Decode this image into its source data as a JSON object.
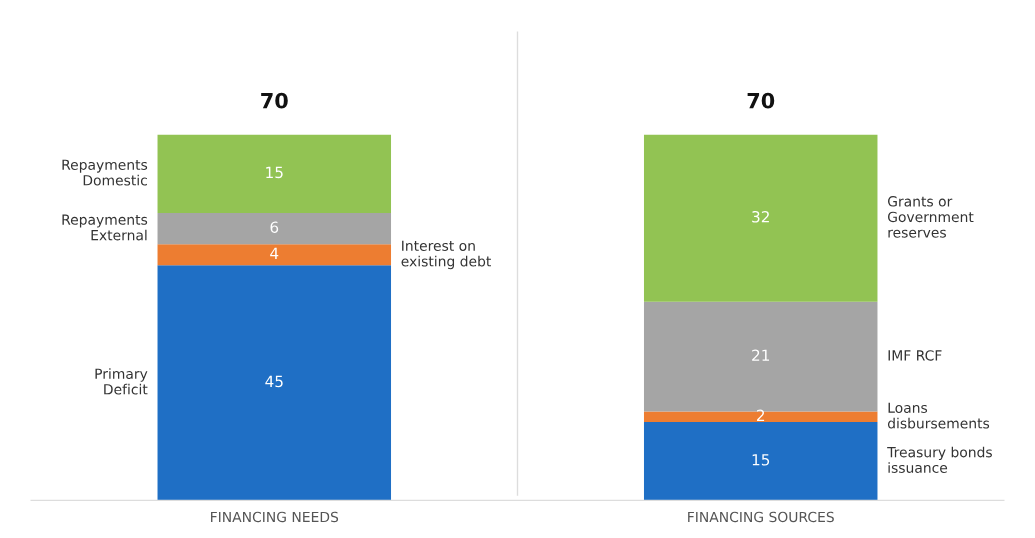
{
  "chart_data": {
    "type": "bar",
    "stacked": true,
    "categories": [
      "FINANCING NEEDS",
      "FINANCING SOURCES"
    ],
    "ylim": [
      0,
      70
    ],
    "tick_labels": "x",
    "data_labels": true,
    "totals": [
      "70",
      "70"
    ],
    "series": [
      {
        "name": "Primary Deficit",
        "color": "#1f6fc5",
        "values": [
          45,
          null
        ]
      },
      {
        "name": "Interest on existing debt",
        "color": "#ed7d31",
        "values": [
          4,
          null
        ]
      },
      {
        "name": "Repayments External",
        "color": "#a5a5a5",
        "values": [
          6,
          null
        ]
      },
      {
        "name": "Repayments Domestic",
        "color": "#92c353",
        "values": [
          15,
          null
        ]
      },
      {
        "name": "Treasury bonds issuance",
        "color": "#1f6fc5",
        "values": [
          null,
          15
        ]
      },
      {
        "name": "Loans disbursements",
        "color": "#ed7d31",
        "values": [
          null,
          2
        ]
      },
      {
        "name": "IMF RCF",
        "color": "#a5a5a5",
        "values": [
          null,
          21
        ]
      },
      {
        "name": "Grants or Government reserves",
        "color": "#92c353",
        "values": [
          null,
          32
        ]
      }
    ]
  }
}
